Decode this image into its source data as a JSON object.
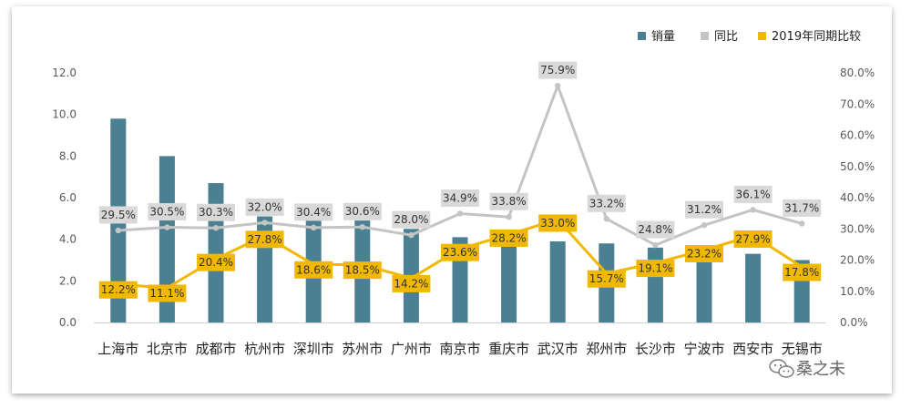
{
  "chart_data": {
    "type": "bar",
    "categories": [
      "上海市",
      "北京市",
      "成都市",
      "杭州市",
      "深圳市",
      "苏州市",
      "广州市",
      "南京市",
      "重庆市",
      "武汉市",
      "郑州市",
      "长沙市",
      "宁波市",
      "西安市",
      "无锡市"
    ],
    "series": [
      {
        "name": "销量",
        "type": "bar",
        "axis": "left",
        "color": "#4a8092",
        "values": [
          9.8,
          8.0,
          6.7,
          5.1,
          4.9,
          4.9,
          4.5,
          4.1,
          4.0,
          3.9,
          3.8,
          3.6,
          3.6,
          3.3,
          3.0
        ]
      },
      {
        "name": "同比",
        "type": "line",
        "axis": "right",
        "color": "#c4c4c4",
        "unit": "%",
        "values": [
          29.5,
          30.5,
          30.3,
          32.0,
          30.4,
          30.6,
          28.0,
          34.9,
          33.8,
          75.9,
          33.2,
          24.8,
          31.2,
          36.1,
          31.7
        ]
      },
      {
        "name": "2019年同期比较",
        "type": "line",
        "axis": "right",
        "color": "#f0b800",
        "unit": "%",
        "values": [
          12.2,
          11.1,
          20.4,
          27.8,
          18.6,
          18.5,
          14.2,
          23.6,
          28.2,
          33.0,
          15.7,
          19.1,
          23.2,
          27.9,
          17.8
        ]
      }
    ],
    "y_left": {
      "ticks": [
        "0.0",
        "2.0",
        "4.0",
        "6.0",
        "8.0",
        "10.0",
        "12.0"
      ],
      "ylim": [
        0,
        12
      ]
    },
    "y_right": {
      "ticks": [
        "0.0%",
        "10.0%",
        "20.0%",
        "30.0%",
        "40.0%",
        "50.0%",
        "60.0%",
        "70.0%",
        "80.0%"
      ],
      "ylim": [
        0,
        80
      ]
    },
    "legend_position": "top-right",
    "grid": false
  },
  "watermark": {
    "text": "桑之未"
  }
}
